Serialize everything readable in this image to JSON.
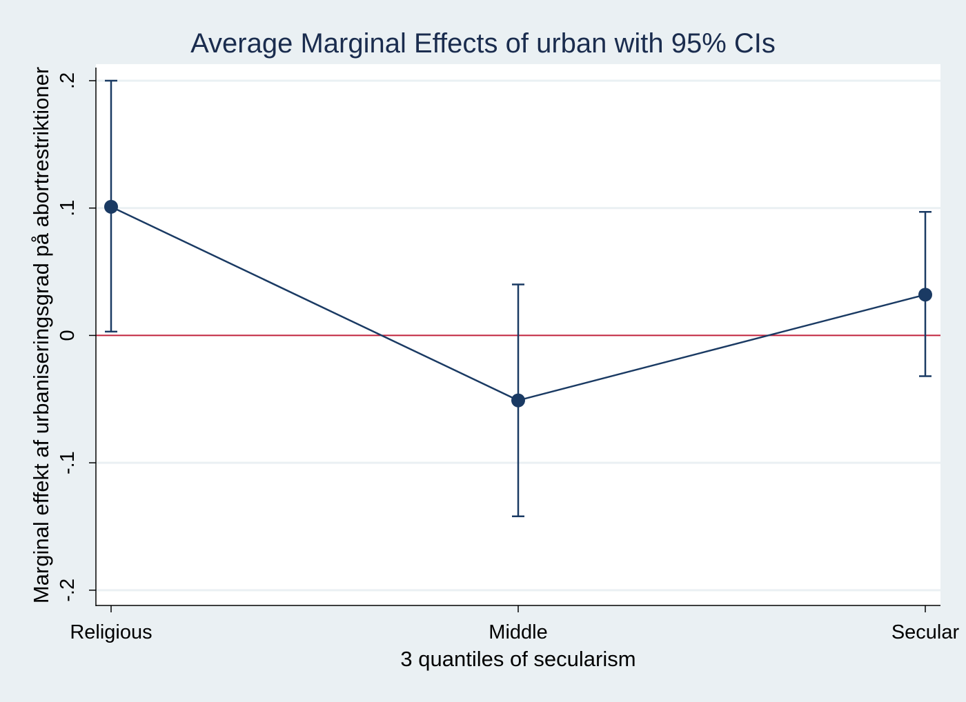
{
  "chart_data": {
    "type": "line",
    "title": "Average Marginal Effects of urban with 95% CIs",
    "xlabel": "3 quantiles of secularism",
    "ylabel": "Marginal effekt af urbaniseringsgrad på abortrestriktioner",
    "categories": [
      "Religious",
      "Middle",
      "Secular"
    ],
    "series": [
      {
        "values": [
          0.101,
          -0.051,
          0.032
        ],
        "ci_lower": [
          0.003,
          -0.142,
          -0.032
        ],
        "ci_upper": [
          0.2,
          0.04,
          0.097
        ]
      }
    ],
    "reference_line": 0,
    "yticks": [
      -0.2,
      -0.1,
      0,
      0.1,
      0.2
    ],
    "ytick_labels": [
      "-.2",
      "-.1",
      "0",
      ".1",
      ".2"
    ],
    "ylim": [
      -0.212,
      0.213
    ],
    "grid": true,
    "legend": "none"
  },
  "colors": {
    "background": "#eaf0f3",
    "plot_area": "#ffffff",
    "gridline": "#eaf0f3",
    "series": "#1a3a63",
    "reference_line": "#c0203a",
    "title": "#1a2c4e"
  }
}
